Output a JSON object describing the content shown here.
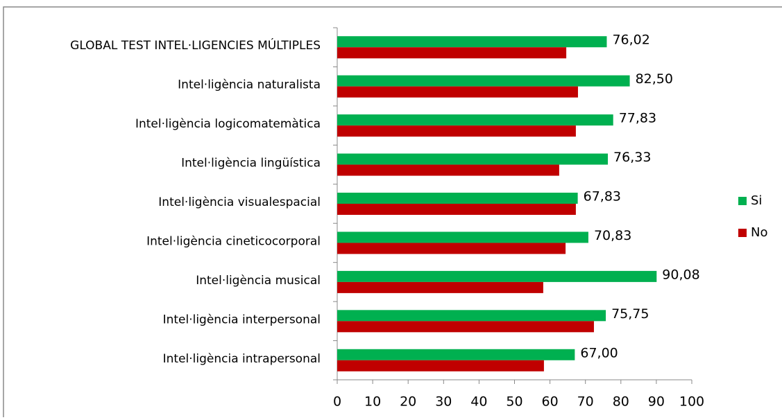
{
  "chart_data": {
    "type": "bar",
    "orientation": "horizontal",
    "categories": [
      "GLOBAL TEST INTEL·LIGENCIES MÚLTIPLES",
      "Intel·ligència naturalista",
      "Intel·ligència logicomatemàtica",
      "Intel·ligència lingüística",
      "Intel·ligència visualespacial",
      "Intel·ligència cineticocorporal",
      "Intel·ligència musical",
      "Intel·ligència interpersonal",
      "Intel·ligència intrapersonal"
    ],
    "series": [
      {
        "name": "Si",
        "color": "#00b050",
        "values": [
          76.02,
          82.5,
          77.83,
          76.33,
          67.83,
          70.83,
          90.08,
          75.75,
          67.0
        ],
        "value_labels": [
          "76,02",
          "82,50",
          "77,83",
          "76,33",
          "67,83",
          "70,83",
          "90,08",
          "75,75",
          "67,00"
        ]
      },
      {
        "name": "No",
        "color": "#c00000",
        "values": [
          64.6,
          67.9,
          67.3,
          62.6,
          67.3,
          64.4,
          58.1,
          72.4,
          58.3
        ]
      }
    ],
    "xlim": [
      0,
      100
    ],
    "xticks": [
      0,
      10,
      20,
      30,
      40,
      50,
      60,
      70,
      80,
      90,
      100
    ],
    "legend": "right"
  }
}
